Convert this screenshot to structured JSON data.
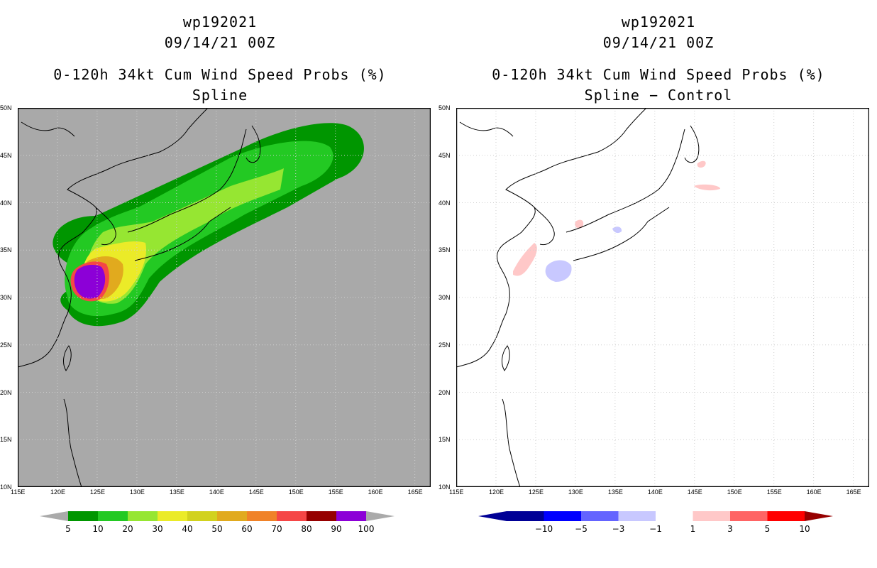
{
  "colors": {
    "ocean_gray": "#a9a9a9",
    "grid": "#cfcfcf",
    "p5": "#009600",
    "p10": "#23c923",
    "p20": "#96e632",
    "p30": "#ebeb28",
    "p40": "#d2d21e",
    "p50": "#e1aa1e",
    "p60": "#f08228",
    "p70": "#f54646",
    "p80": "#960000",
    "p90": "#8c00d7",
    "p100": "#aaaaaa",
    "d_m10": "#000096",
    "d_m5": "#0000ff",
    "d_m3": "#6464ff",
    "d_m1": "#c8c8ff",
    "d_0": "#ffffff",
    "d_1": "#ffc8c8",
    "d_3": "#ff6464",
    "d_5": "#ff0000",
    "d_10": "#960000"
  },
  "left": {
    "storm": "wp192021",
    "datetime": "09/14/21 00Z",
    "product": "0-120h 34kt Cum Wind Speed Probs (%)",
    "subtitle": "Spline"
  },
  "right": {
    "storm": "wp192021",
    "datetime": "09/14/21 00Z",
    "product": "0-120h 34kt Cum Wind Speed Probs (%)",
    "subtitle": "Spline − Control"
  },
  "map": {
    "lon_range": [
      115,
      167
    ],
    "lat_range": [
      10,
      50
    ],
    "lon_ticks": [
      "115E",
      "120E",
      "125E",
      "130E",
      "135E",
      "140E",
      "145E",
      "150E",
      "155E",
      "160E",
      "165E"
    ],
    "lat_ticks": [
      "10N",
      "15N",
      "20N",
      "25N",
      "30N",
      "35N",
      "40N",
      "45N",
      "50N"
    ]
  },
  "left_colorbar": {
    "labels": [
      "5",
      "10",
      "20",
      "30",
      "40",
      "50",
      "60",
      "70",
      "80",
      "90",
      "100"
    ]
  },
  "right_colorbar": {
    "labels": [
      "−10",
      "−5",
      "−3",
      "−1",
      "1",
      "3",
      "5",
      "10"
    ]
  }
}
